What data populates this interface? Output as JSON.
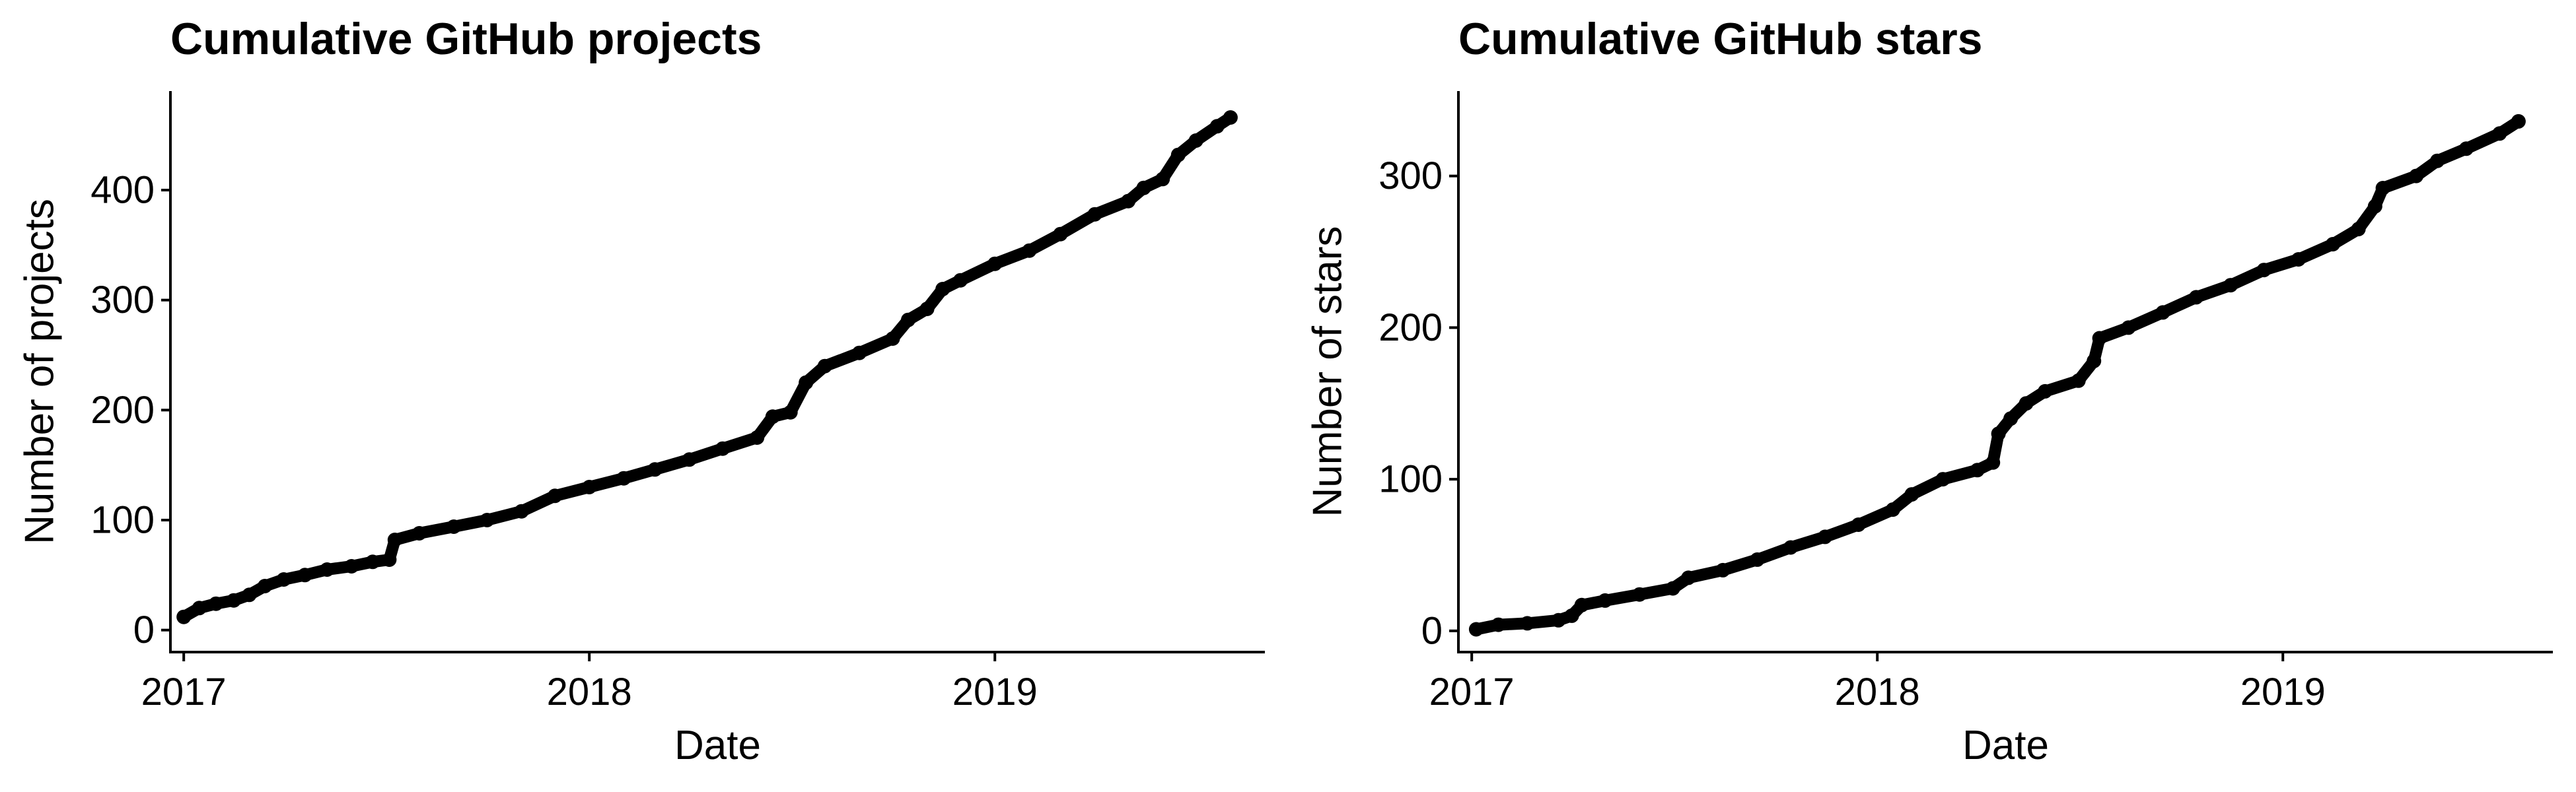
{
  "point_color": "#000000",
  "chart_data": [
    {
      "type": "scatter",
      "title": "Cumulative GitHub projects",
      "xlabel": "Date",
      "ylabel": "Number of projects",
      "x_ticks": [
        "2017",
        "2018",
        "2019"
      ],
      "y_ticks": [
        0,
        100,
        200,
        300,
        400
      ],
      "xlim": [
        "2016-12-20",
        "2019-09-01"
      ],
      "ylim": [
        -20,
        490
      ],
      "grid": false,
      "legend": "none",
      "points": [
        [
          "2017-01-01",
          12
        ],
        [
          "2017-01-15",
          20
        ],
        [
          "2017-01-30",
          24
        ],
        [
          "2017-02-15",
          27
        ],
        [
          "2017-03-01",
          32
        ],
        [
          "2017-03-15",
          40
        ],
        [
          "2017-04-01",
          46
        ],
        [
          "2017-04-20",
          50
        ],
        [
          "2017-05-10",
          55
        ],
        [
          "2017-06-01",
          58
        ],
        [
          "2017-06-20",
          62
        ],
        [
          "2017-07-05",
          64
        ],
        [
          "2017-07-10",
          82
        ],
        [
          "2017-08-01",
          88
        ],
        [
          "2017-09-01",
          94
        ],
        [
          "2017-10-01",
          100
        ],
        [
          "2017-11-01",
          108
        ],
        [
          "2017-12-01",
          122
        ],
        [
          "2018-01-01",
          130
        ],
        [
          "2018-02-01",
          138
        ],
        [
          "2018-03-01",
          146
        ],
        [
          "2018-04-01",
          155
        ],
        [
          "2018-05-01",
          165
        ],
        [
          "2018-06-01",
          175
        ],
        [
          "2018-06-15",
          194
        ],
        [
          "2018-07-01",
          198
        ],
        [
          "2018-07-15",
          225
        ],
        [
          "2018-08-01",
          240
        ],
        [
          "2018-09-01",
          252
        ],
        [
          "2018-10-01",
          265
        ],
        [
          "2018-10-15",
          282
        ],
        [
          "2018-11-01",
          292
        ],
        [
          "2018-11-15",
          310
        ],
        [
          "2018-12-01",
          318
        ],
        [
          "2019-01-01",
          333
        ],
        [
          "2019-02-01",
          345
        ],
        [
          "2019-03-01",
          360
        ],
        [
          "2019-04-01",
          378
        ],
        [
          "2019-05-01",
          390
        ],
        [
          "2019-05-15",
          402
        ],
        [
          "2019-06-01",
          410
        ],
        [
          "2019-06-15",
          432
        ],
        [
          "2019-07-01",
          445
        ],
        [
          "2019-07-20",
          458
        ],
        [
          "2019-08-01",
          466
        ]
      ]
    },
    {
      "type": "scatter",
      "title": "Cumulative GitHub stars",
      "xlabel": "Date",
      "ylabel": "Number of stars",
      "x_ticks": [
        "2017",
        "2018",
        "2019"
      ],
      "y_ticks": [
        0,
        100,
        200,
        300
      ],
      "xlim": [
        "2016-12-20",
        "2019-09-01"
      ],
      "ylim": [
        -14,
        356
      ],
      "grid": false,
      "legend": "none",
      "points": [
        [
          "2017-01-05",
          1
        ],
        [
          "2017-01-25",
          4
        ],
        [
          "2017-02-20",
          5
        ],
        [
          "2017-03-20",
          7
        ],
        [
          "2017-04-01",
          10
        ],
        [
          "2017-04-10",
          17
        ],
        [
          "2017-05-01",
          20
        ],
        [
          "2017-06-01",
          24
        ],
        [
          "2017-07-01",
          28
        ],
        [
          "2017-07-15",
          35
        ],
        [
          "2017-08-15",
          40
        ],
        [
          "2017-09-15",
          47
        ],
        [
          "2017-10-15",
          55
        ],
        [
          "2017-11-15",
          62
        ],
        [
          "2017-12-15",
          70
        ],
        [
          "2018-01-15",
          80
        ],
        [
          "2018-02-01",
          90
        ],
        [
          "2018-03-01",
          100
        ],
        [
          "2018-04-01",
          106
        ],
        [
          "2018-04-15",
          111
        ],
        [
          "2018-04-20",
          130
        ],
        [
          "2018-05-01",
          140
        ],
        [
          "2018-05-15",
          150
        ],
        [
          "2018-06-01",
          158
        ],
        [
          "2018-07-01",
          165
        ],
        [
          "2018-07-15",
          178
        ],
        [
          "2018-07-20",
          193
        ],
        [
          "2018-08-15",
          200
        ],
        [
          "2018-09-15",
          210
        ],
        [
          "2018-10-15",
          220
        ],
        [
          "2018-11-15",
          228
        ],
        [
          "2018-12-15",
          238
        ],
        [
          "2019-01-15",
          245
        ],
        [
          "2019-02-15",
          255
        ],
        [
          "2019-03-10",
          265
        ],
        [
          "2019-03-25",
          280
        ],
        [
          "2019-04-01",
          292
        ],
        [
          "2019-05-01",
          300
        ],
        [
          "2019-05-20",
          310
        ],
        [
          "2019-06-15",
          318
        ],
        [
          "2019-07-15",
          328
        ],
        [
          "2019-08-01",
          336
        ]
      ]
    }
  ]
}
